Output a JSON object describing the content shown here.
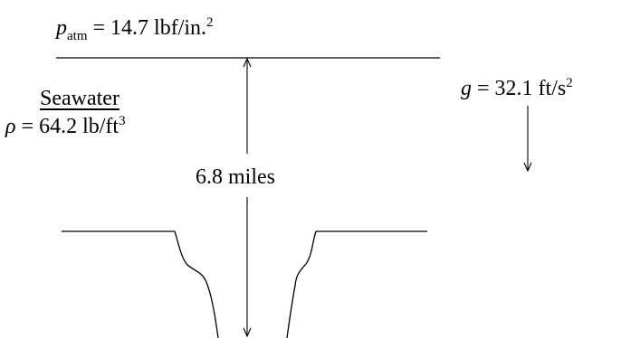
{
  "patm": {
    "symbol": "p",
    "subscript": "atm",
    "value_text": " = 14.7 lbf/in.",
    "exponent": "2"
  },
  "fluid": {
    "name": "Seawater",
    "density_symbol": "ρ",
    "density_value": " = 64.2 lb/ft",
    "density_exponent": "3"
  },
  "gravity": {
    "symbol": "g",
    "value_text": " = 32.1 ft/s",
    "exponent": "2"
  },
  "depth_label": "6.8 miles"
}
